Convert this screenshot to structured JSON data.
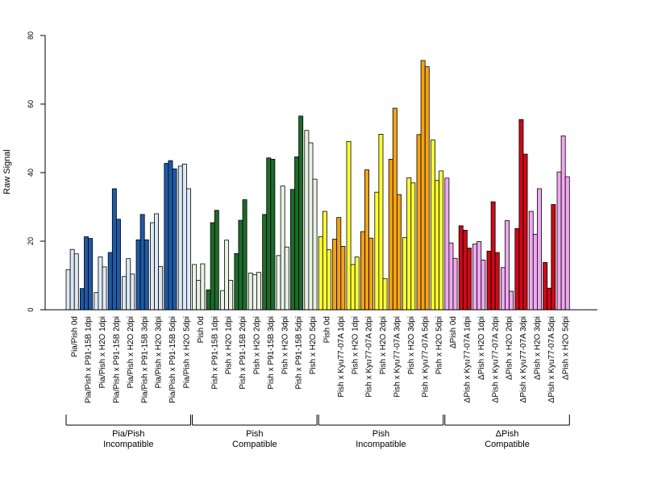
{
  "chart_data": {
    "type": "bar",
    "ylabel": "Raw Signal",
    "ylim": [
      0,
      80
    ],
    "yticks": [
      0,
      20,
      40,
      60,
      80
    ],
    "bars_per_category": 3,
    "categories": [
      "Pia/Pish 0d",
      "Pia/Pish x P91-15B 1dpi",
      "Pia/Pish x H2O 1dpi",
      "Pia/Pish x P91-15B 2dpi",
      "Pia/Pish x H2O 2dpi",
      "Pia/Pish x P91-15B 3dpi",
      "Pia/Pish x H2O 3dpi",
      "Pia/Pish x P91-15B 5dpi",
      "Pia/Pish x H2O 5dpi",
      "Pish 0d",
      "Pish x P91-15B 1dpi",
      "Pish x H2O 1dpi",
      "Pish x P91-15B 2dpi",
      "Pish x H2O 2dpi",
      "Pish x P91-15B 3dpi",
      "Pish x H2O 3dpi",
      "Pish x P91-15B 5dpi",
      "Pish x H2O 5dpi",
      "Pish 0d",
      "Pish x Kyu77-07A 1dpi",
      "Pish x H2O 1dpi",
      "Pish x Kyu77-07A 2dpi",
      "Pish x H2O 2dpi",
      "Pish x Kyu77-07A 3dpi",
      "Pish x H2O 3dpi",
      "Pish x Kyu77-07A 5dpi",
      "Pish x H2O 5dpi",
      "ΔPish 0d",
      "ΔPish x Kyu77-07A 1dpi",
      "ΔPish x H2O 1dpi",
      "ΔPish x Kyu77-07A 2dpi",
      "ΔPish x H2O 2dpi",
      "ΔPish x Kyu77-07A 3dpi",
      "ΔPish x H2O 3dpi",
      "ΔPish x Kyu77-07A 5dpi",
      "ΔPish x H2O 5dpi"
    ],
    "values": [
      [
        11.7,
        17.6,
        16.3
      ],
      [
        6.2,
        21.3,
        20.8
      ],
      [
        5.0,
        15.4,
        12.5
      ],
      [
        16.7,
        35.3,
        26.4
      ],
      [
        9.7,
        14.9,
        10.4
      ],
      [
        20.4,
        27.8,
        20.4
      ],
      [
        25.4,
        28.0,
        12.6
      ],
      [
        42.7,
        43.5,
        41.1
      ],
      [
        41.9,
        42.5,
        35.3
      ],
      [
        13.2,
        8.6,
        13.4
      ],
      [
        5.8,
        25.4,
        29.0
      ],
      [
        5.6,
        20.3,
        8.6
      ],
      [
        16.4,
        26.1,
        32.1
      ],
      [
        10.7,
        10.2,
        10.9
      ],
      [
        27.8,
        44.3,
        43.9
      ],
      [
        15.8,
        36.1,
        18.3
      ],
      [
        35.1,
        44.6,
        56.5
      ],
      [
        52.3,
        48.7,
        38.1
      ],
      [
        21.3,
        28.7,
        17.5
      ],
      [
        20.6,
        26.9,
        18.5
      ],
      [
        49.1,
        13.2,
        15.4
      ],
      [
        22.8,
        40.8,
        20.9
      ],
      [
        34.3,
        51.2,
        9.1
      ],
      [
        43.9,
        58.8,
        33.6
      ],
      [
        21.1,
        38.5,
        37.0
      ],
      [
        51.1,
        72.7,
        70.9
      ],
      [
        49.5,
        37.7,
        40.5
      ],
      [
        38.4,
        19.5,
        15.0
      ],
      [
        24.5,
        23.2,
        18.0
      ],
      [
        19.2,
        19.9,
        14.5
      ],
      [
        17.1,
        31.5,
        16.7
      ],
      [
        12.3,
        26.0,
        5.4
      ],
      [
        23.7,
        55.5,
        45.4
      ],
      [
        28.7,
        22.0,
        35.3
      ],
      [
        13.8,
        6.3,
        30.7
      ],
      [
        40.2,
        50.7,
        38.8
      ]
    ],
    "groups": [
      {
        "label_line1": "Pia/Pish",
        "label_line2": "Incompatible",
        "start": 0,
        "end": 8,
        "inf_color": "#1f5aa6",
        "h2o_color": "#dce8f5"
      },
      {
        "label_line1": "Pish",
        "label_line2": "Compatible",
        "start": 9,
        "end": 17,
        "inf_color": "#1e6b2c",
        "h2o_color": "#e8f3e6"
      },
      {
        "label_line1": "Pish",
        "label_line2": "Incompatible",
        "start": 18,
        "end": 26,
        "inf_color": "#f5a314",
        "h2o_color": "#ffff33"
      },
      {
        "label_line1": "ΔPish",
        "label_line2": "Compatible",
        "start": 27,
        "end": 35,
        "inf_color": "#cc0a17",
        "h2o_color": "#f0a8f0"
      }
    ],
    "grid": false,
    "legend": "none"
  }
}
